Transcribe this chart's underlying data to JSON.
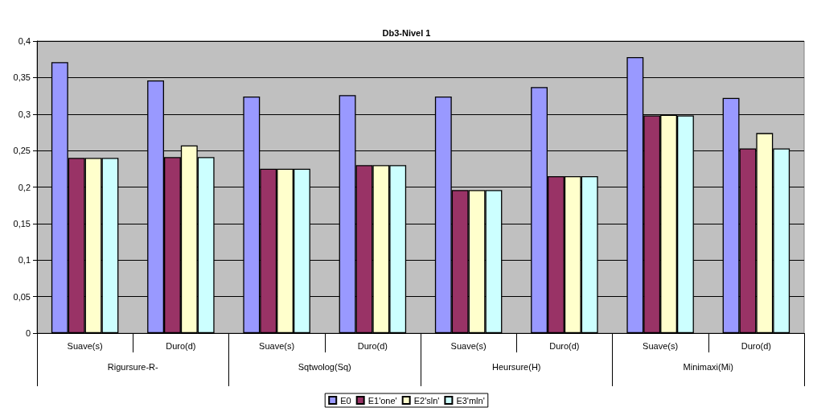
{
  "chart_data": {
    "type": "bar",
    "title": "Db3-Nivel 1",
    "categories": [
      "Suave(s)",
      "Duro(d)",
      "Suave(s)",
      "Duro(d)",
      "Suave(s)",
      "Duro(d)",
      "Suave(s)",
      "Duro(d)"
    ],
    "annotations": [
      "Rigursure-R-",
      "Sqtwolog(Sq)",
      "Heursure(H)",
      "Minimaxi(Mi)"
    ],
    "series": [
      {
        "name": "E0",
        "color": "#9999ff",
        "values": [
          0.371,
          0.346,
          0.324,
          0.326,
          0.324,
          0.337,
          0.378,
          0.322
        ]
      },
      {
        "name": "E1'one'",
        "color": "#993366",
        "values": [
          0.24,
          0.241,
          0.225,
          0.23,
          0.196,
          0.215,
          0.298,
          0.253
        ]
      },
      {
        "name": "E2'sln'",
        "color": "#ffffcc",
        "values": [
          0.24,
          0.257,
          0.225,
          0.23,
          0.196,
          0.215,
          0.299,
          0.274
        ]
      },
      {
        "name": "E3'mln'",
        "color": "#ccffff",
        "values": [
          0.24,
          0.241,
          0.225,
          0.23,
          0.196,
          0.215,
          0.298,
          0.253
        ]
      }
    ],
    "ylim": [
      0,
      0.4
    ],
    "yticks": [
      {
        "value": 0,
        "label": "0"
      },
      {
        "value": 0.05,
        "label": "0,05"
      },
      {
        "value": 0.1,
        "label": "0,1"
      },
      {
        "value": 0.15,
        "label": "0,15"
      },
      {
        "value": 0.2,
        "label": "0,2"
      },
      {
        "value": 0.25,
        "label": "0,25"
      },
      {
        "value": 0.3,
        "label": "0,3"
      },
      {
        "value": 0.35,
        "label": "0,35"
      },
      {
        "value": 0.4,
        "label": "0,4"
      }
    ],
    "grid": "y",
    "legend": "bottom"
  }
}
